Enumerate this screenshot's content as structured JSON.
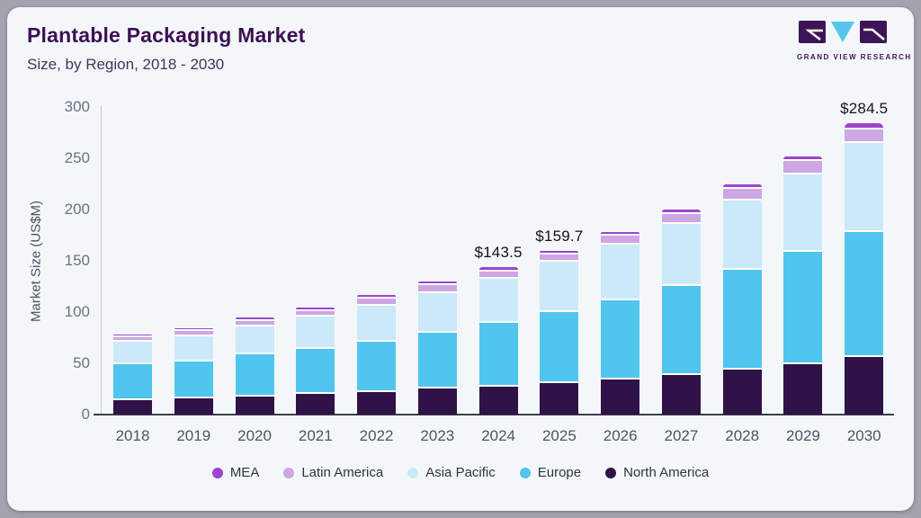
{
  "header": {
    "title": "Plantable Packaging Market",
    "subtitle": "Size, by Region, 2018 - 2030"
  },
  "logo": {
    "caption": "GRAND VIEW RESEARCH",
    "purple": "#3d1556",
    "cyan": "#55c6ea"
  },
  "chart_data": {
    "type": "bar",
    "stacked": true,
    "title": "Plantable Packaging Market",
    "subtitle": "Size, by Region, 2018 - 2030",
    "xlabel": "",
    "ylabel": "Market Size (US$M)",
    "ylim": [
      0,
      300
    ],
    "yticks": [
      0,
      50,
      100,
      150,
      200,
      250,
      300
    ],
    "grid": false,
    "legend_position": "bottom",
    "categories": [
      "2018",
      "2019",
      "2020",
      "2021",
      "2022",
      "2023",
      "2024",
      "2025",
      "2026",
      "2027",
      "2028",
      "2029",
      "2030"
    ],
    "series": [
      {
        "name": "North America",
        "color": "#2f1247",
        "values": [
          15.5,
          17.5,
          19.5,
          22.0,
          24.0,
          27.0,
          28.6,
          32.7,
          36.0,
          40.0,
          46.0,
          50.5,
          57.6
        ]
      },
      {
        "name": "Europe",
        "color": "#50c5ee",
        "values": [
          35.0,
          36.0,
          41.0,
          44.0,
          49.0,
          55.0,
          62.5,
          68.9,
          77.0,
          87.0,
          96.8,
          110.0,
          122.6
        ]
      },
      {
        "name": "Asia Pacific",
        "color": "#cbe9f8",
        "values": [
          22.0,
          24.5,
          27.5,
          31.0,
          35.0,
          38.5,
          42.8,
          49.0,
          54.5,
          60.5,
          67.5,
          75.5,
          86.5
        ]
      },
      {
        "name": "Latin America",
        "color": "#cda6e3",
        "values": [
          4.5,
          5.0,
          5.2,
          6.0,
          6.5,
          7.3,
          7.2,
          6.9,
          8.5,
          10.0,
          11.5,
          13.0,
          13.4
        ]
      },
      {
        "name": "MEA",
        "color": "#9c45cf",
        "values": [
          1.5,
          1.6,
          1.7,
          1.8,
          2.0,
          2.2,
          2.4,
          2.2,
          2.5,
          2.7,
          2.9,
          3.1,
          4.4
        ]
      }
    ],
    "totals": [
      78.5,
      84.6,
      94.9,
      104.8,
      116.5,
      130.0,
      143.5,
      159.7,
      178.5,
      200.2,
      224.7,
      252.1,
      284.5
    ],
    "annotations": [
      {
        "category": "2024",
        "text": "$143.5"
      },
      {
        "category": "2025",
        "text": "$159.7"
      },
      {
        "category": "2030",
        "text": "$284.5"
      }
    ],
    "legend": [
      {
        "label": "MEA",
        "color": "#9c45cf"
      },
      {
        "label": "Latin America",
        "color": "#cda6e3"
      },
      {
        "label": "Asia Pacific",
        "color": "#cbe9f8"
      },
      {
        "label": "Europe",
        "color": "#50c5ee"
      },
      {
        "label": "North America",
        "color": "#2f1247"
      }
    ]
  }
}
